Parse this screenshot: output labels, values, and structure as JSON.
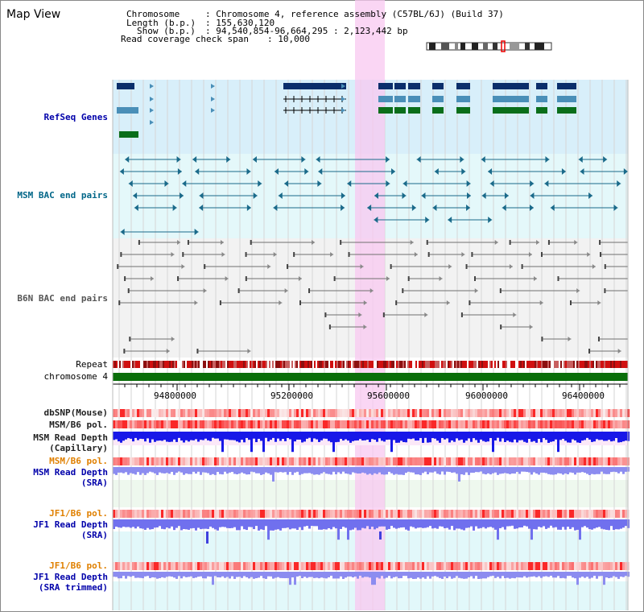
{
  "app": {
    "title": "Map View"
  },
  "info": {
    "chromosome_label": "Chromosome",
    "chromosome_value": ": Chromosome 4, reference assembly (C57BL/6J) (Build 37)",
    "length_label": "Length (b.p.)",
    "length_value": ": 155,630,120",
    "show_label": "Show (b.p.)",
    "show_value": ": 94,540,854-96,664,295 : 2,123,442 bp",
    "coverage_label": "Read coverage check span",
    "coverage_value": ": 10,000"
  },
  "tracks": {
    "refseq": "RefSeq Genes",
    "msm_bac": "MSM BAC end pairs",
    "b6n_bac": "B6N BAC end pairs",
    "repeat": "Repeat",
    "chromosome": "chromosome 4",
    "dbsnp": "dbSNP(Mouse)",
    "msm_b6_pol_1": "MSM/B6 pol.",
    "msm_read_depth_cap_1": "MSM Read Depth",
    "msm_read_depth_cap_2": "(Capillary)",
    "msm_b6_pol_2": "MSM/B6 pol.",
    "msm_read_depth_sra_1": "MSM Read Depth",
    "msm_read_depth_sra_2": "(SRA)",
    "jf1_b6_pol_1": "JF1/B6 pol.",
    "jf1_read_depth_sra_1": "JF1 Read Depth",
    "jf1_read_depth_sra_2": "(SRA)",
    "jf1_b6_pol_2": "JF1/B6 pol.",
    "jf1_read_depth_trim_1": "JF1 Read Depth",
    "jf1_read_depth_trim_2": "(SRA trimmed)"
  },
  "axis": {
    "ticks": [
      "94800000",
      "95200000",
      "95600000",
      "96000000",
      "96400000"
    ]
  },
  "colors": {
    "refseq_bg": "#d8effa",
    "msm_bg": "#e4f8fa",
    "b6n_bg": "#f2f2f2",
    "highlight": "#f8c8f0",
    "gene_dark": "#0b2e6b",
    "gene_mid": "#4a8fb8",
    "gene_green": "#0a6e1a",
    "chrom_green": "#0a6e0a",
    "msm_bac": "#1a6a8a",
    "b6n_bac": "#707070",
    "depth_blue": "#1818e8",
    "depth_light": "#8c8cf0",
    "label_blue": "#0000aa",
    "label_orange": "#e08000"
  }
}
